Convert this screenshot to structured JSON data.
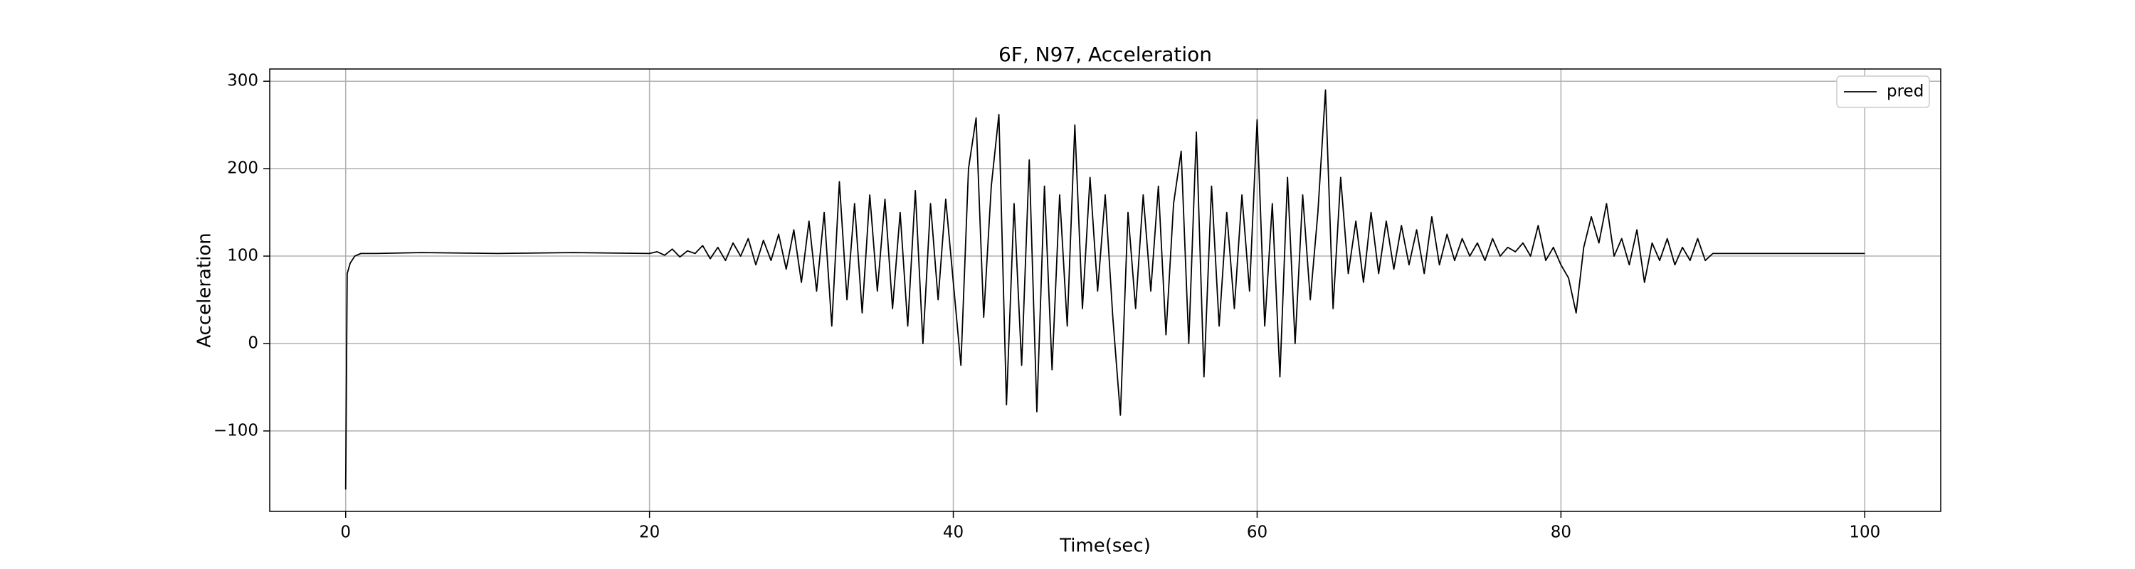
{
  "chart_data": {
    "type": "line",
    "title": "6F, N97, Acceleration",
    "xlabel": "Time(sec)",
    "ylabel": "Acceleration",
    "x": [
      0,
      0.1,
      0.3,
      0.6,
      1,
      2,
      5,
      10,
      15,
      20,
      20.5,
      21,
      21.5,
      22,
      22.5,
      23,
      23.5,
      24,
      24.5,
      25,
      25.5,
      26,
      26.5,
      27,
      27.5,
      28,
      28.5,
      29,
      29.5,
      30,
      30.5,
      31,
      31.5,
      32,
      32.5,
      33,
      33.5,
      34,
      34.5,
      35,
      35.5,
      36,
      36.5,
      37,
      37.5,
      38,
      38.5,
      39,
      39.5,
      40,
      40.5,
      41,
      41.5,
      42,
      42.5,
      43,
      43.5,
      44,
      44.5,
      45,
      45.5,
      46,
      46.5,
      47,
      47.5,
      48,
      48.5,
      49,
      49.5,
      50,
      50.5,
      51,
      51.5,
      52,
      52.5,
      53,
      53.5,
      54,
      54.5,
      55,
      55.5,
      56,
      56.5,
      57,
      57.5,
      58,
      58.5,
      59,
      59.5,
      60,
      60.5,
      61,
      61.5,
      62,
      62.5,
      63,
      63.5,
      64,
      64.5,
      65,
      65.5,
      66,
      66.5,
      67,
      67.5,
      68,
      68.5,
      69,
      69.5,
      70,
      70.5,
      71,
      71.5,
      72,
      72.5,
      73,
      73.5,
      74,
      74.5,
      75,
      75.5,
      76,
      76.5,
      77,
      77.5,
      78,
      78.5,
      79,
      79.5,
      80,
      80.5,
      81,
      81.5,
      82,
      82.5,
      83,
      83.5,
      84,
      84.5,
      85,
      85.5,
      86,
      86.5,
      87,
      87.5,
      88,
      88.5,
      89,
      89.5,
      90,
      90.5,
      95,
      100
    ],
    "series": [
      {
        "name": "pred",
        "color": "#000000",
        "values": [
          -167,
          80,
          92,
          100,
          103,
          103,
          104,
          103,
          104,
          103,
          105,
          101,
          108,
          99,
          106,
          103,
          112,
          97,
          110,
          95,
          115,
          100,
          120,
          90,
          118,
          95,
          125,
          85,
          130,
          70,
          140,
          60,
          150,
          20,
          185,
          50,
          160,
          35,
          170,
          60,
          165,
          40,
          150,
          20,
          175,
          0,
          160,
          50,
          165,
          70,
          -25,
          200,
          258,
          30,
          180,
          262,
          -70,
          160,
          -25,
          210,
          -78,
          180,
          -30,
          170,
          20,
          250,
          40,
          190,
          60,
          170,
          30,
          -82,
          150,
          40,
          170,
          60,
          180,
          10,
          160,
          220,
          0,
          242,
          -38,
          180,
          20,
          150,
          40,
          170,
          60,
          256,
          20,
          160,
          -38,
          190,
          0,
          170,
          50,
          150,
          290,
          40,
          190,
          80,
          140,
          70,
          150,
          80,
          140,
          85,
          135,
          90,
          130,
          80,
          145,
          90,
          125,
          95,
          120,
          100,
          115,
          95,
          120,
          100,
          110,
          105,
          115,
          100,
          135,
          95,
          110,
          90,
          75,
          35,
          110,
          145,
          115,
          160,
          100,
          120,
          90,
          130,
          70,
          115,
          95,
          120,
          90,
          110,
          95,
          120,
          95,
          103,
          103,
          103,
          103
        ]
      }
    ],
    "xlim": [
      -5,
      105
    ],
    "ylim": [
      -192,
      314
    ],
    "xticks": [
      0,
      20,
      40,
      60,
      80,
      100
    ],
    "yticks": [
      {
        "value": -100,
        "label": "−100"
      },
      0,
      100,
      200,
      300
    ],
    "grid": true,
    "legend": "upper right"
  }
}
